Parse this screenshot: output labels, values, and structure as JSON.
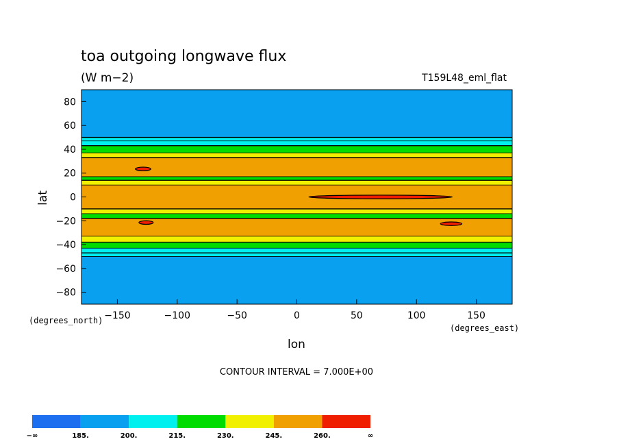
{
  "chart_data": {
    "type": "heatmap",
    "title": "toa outgoing longwave flux",
    "units": "(W m−2)",
    "dataset": "T159L48_eml_flat",
    "xlabel": "lon",
    "ylabel": "lat",
    "x_units": "(degrees_east)",
    "y_units": "(degrees_north)",
    "xlim": [
      -180,
      180
    ],
    "ylim": [
      -90,
      90
    ],
    "x_ticks": [
      "−150",
      "−100",
      "−50",
      "0",
      "50",
      "100",
      "150"
    ],
    "x_tick_values": [
      -150,
      -100,
      -50,
      0,
      50,
      100,
      150
    ],
    "y_ticks": [
      "80",
      "60",
      "40",
      "20",
      "0",
      "−20",
      "−40",
      "−60",
      "−80"
    ],
    "y_tick_values": [
      80,
      60,
      40,
      20,
      0,
      -20,
      -40,
      -60,
      -80
    ],
    "contour_interval": "CONTOUR INTERVAL = 7.000E+00",
    "colorbar": {
      "labels": [
        "−∞",
        "185.",
        "200.",
        "215.",
        "230.",
        "245.",
        "260.",
        "∞"
      ],
      "colors": [
        "#1e6ef0",
        "#0aa0f0",
        "#00f0f0",
        "#00dc00",
        "#f0f000",
        "#f0a000",
        "#f01e00"
      ]
    },
    "zonal_bands": [
      {
        "lat": [
          50,
          90
        ],
        "level": 1
      },
      {
        "lat": [
          47,
          50
        ],
        "level": 2
      },
      {
        "lat": [
          43,
          47
        ],
        "level": 2
      },
      {
        "lat": [
          37,
          43
        ],
        "level": 3
      },
      {
        "lat": [
          33,
          37
        ],
        "level": 4
      },
      {
        "lat": [
          17,
          33
        ],
        "level": 5
      },
      {
        "lat": [
          14,
          17
        ],
        "level": 3
      },
      {
        "lat": [
          10,
          14
        ],
        "level": 4
      },
      {
        "lat": [
          -10,
          10
        ],
        "level": 5
      },
      {
        "lat": [
          -14,
          -10
        ],
        "level": 4
      },
      {
        "lat": [
          -18,
          -14
        ],
        "level": 3
      },
      {
        "lat": [
          -33,
          -18
        ],
        "level": 5
      },
      {
        "lat": [
          -38,
          -33
        ],
        "level": 4
      },
      {
        "lat": [
          -43,
          -38
        ],
        "level": 3
      },
      {
        "lat": [
          -47,
          -43
        ],
        "level": 2
      },
      {
        "lat": [
          -50,
          -47
        ],
        "level": 2
      },
      {
        "lat": [
          -90,
          -50
        ],
        "level": 1
      }
    ],
    "maxima": [
      {
        "lon": [
          10,
          130
        ],
        "lat": [
          -1.5,
          1.5
        ],
        "level": 6
      },
      {
        "lon": [
          -135,
          -122
        ],
        "lat": [
          22,
          25
        ],
        "level": 6
      },
      {
        "lon": [
          -132,
          -120
        ],
        "lat": [
          -23,
          -20
        ],
        "level": 6
      },
      {
        "lon": [
          120,
          138
        ],
        "lat": [
          -24,
          -21
        ],
        "level": 6
      }
    ]
  }
}
